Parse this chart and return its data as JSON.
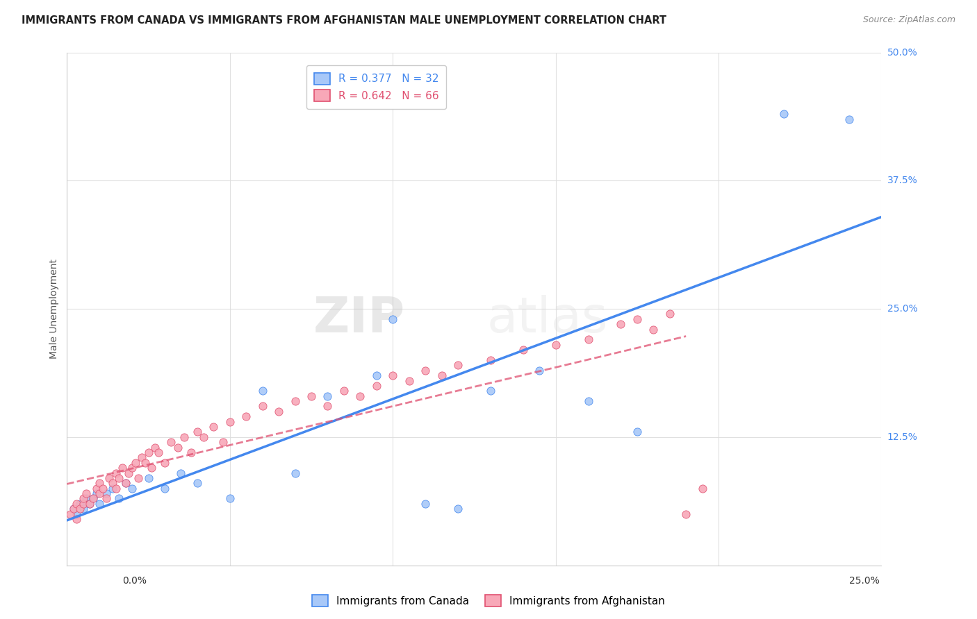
{
  "title": "IMMIGRANTS FROM CANADA VS IMMIGRANTS FROM AFGHANISTAN MALE UNEMPLOYMENT CORRELATION CHART",
  "source": "Source: ZipAtlas.com",
  "ylabel": "Male Unemployment",
  "yticks": [
    0.0,
    0.125,
    0.25,
    0.375,
    0.5
  ],
  "ytick_labels": [
    "",
    "12.5%",
    "25.0%",
    "37.5%",
    "50.0%"
  ],
  "xlim": [
    0.0,
    0.25
  ],
  "ylim": [
    0.0,
    0.5
  ],
  "canada_R": 0.377,
  "canada_N": 32,
  "afghanistan_R": 0.642,
  "afghanistan_N": 66,
  "canada_color": "#a8c8f8",
  "canada_line_color": "#4488ee",
  "afghanistan_color": "#f8a8b8",
  "afghanistan_line_color": "#e05070",
  "watermark_zip": "ZIP",
  "watermark_atlas": "atlas",
  "background_color": "#ffffff",
  "grid_color": "#dddddd",
  "canada_scatter_x": [
    0.002,
    0.003,
    0.004,
    0.005,
    0.006,
    0.007,
    0.008,
    0.009,
    0.01,
    0.012,
    0.014,
    0.016,
    0.018,
    0.02,
    0.025,
    0.03,
    0.035,
    0.04,
    0.05,
    0.06,
    0.07,
    0.08,
    0.095,
    0.1,
    0.11,
    0.12,
    0.13,
    0.145,
    0.16,
    0.175,
    0.22,
    0.24
  ],
  "canada_scatter_y": [
    0.055,
    0.05,
    0.06,
    0.055,
    0.065,
    0.06,
    0.065,
    0.07,
    0.06,
    0.07,
    0.075,
    0.065,
    0.08,
    0.075,
    0.085,
    0.075,
    0.09,
    0.08,
    0.065,
    0.17,
    0.09,
    0.165,
    0.185,
    0.24,
    0.06,
    0.055,
    0.17,
    0.19,
    0.16,
    0.13,
    0.44,
    0.435
  ],
  "afghanistan_scatter_x": [
    0.001,
    0.002,
    0.003,
    0.003,
    0.004,
    0.005,
    0.005,
    0.006,
    0.007,
    0.008,
    0.009,
    0.01,
    0.01,
    0.011,
    0.012,
    0.013,
    0.014,
    0.015,
    0.015,
    0.016,
    0.017,
    0.018,
    0.019,
    0.02,
    0.021,
    0.022,
    0.023,
    0.024,
    0.025,
    0.026,
    0.027,
    0.028,
    0.03,
    0.032,
    0.034,
    0.036,
    0.038,
    0.04,
    0.042,
    0.045,
    0.048,
    0.05,
    0.055,
    0.06,
    0.065,
    0.07,
    0.075,
    0.08,
    0.085,
    0.09,
    0.095,
    0.1,
    0.105,
    0.11,
    0.115,
    0.12,
    0.13,
    0.14,
    0.15,
    0.16,
    0.17,
    0.175,
    0.18,
    0.185,
    0.19,
    0.195
  ],
  "afghanistan_scatter_y": [
    0.05,
    0.055,
    0.045,
    0.06,
    0.055,
    0.06,
    0.065,
    0.07,
    0.06,
    0.065,
    0.075,
    0.07,
    0.08,
    0.075,
    0.065,
    0.085,
    0.08,
    0.075,
    0.09,
    0.085,
    0.095,
    0.08,
    0.09,
    0.095,
    0.1,
    0.085,
    0.105,
    0.1,
    0.11,
    0.095,
    0.115,
    0.11,
    0.1,
    0.12,
    0.115,
    0.125,
    0.11,
    0.13,
    0.125,
    0.135,
    0.12,
    0.14,
    0.145,
    0.155,
    0.15,
    0.16,
    0.165,
    0.155,
    0.17,
    0.165,
    0.175,
    0.185,
    0.18,
    0.19,
    0.185,
    0.195,
    0.2,
    0.21,
    0.215,
    0.22,
    0.235,
    0.24,
    0.23,
    0.245,
    0.05,
    0.075
  ]
}
